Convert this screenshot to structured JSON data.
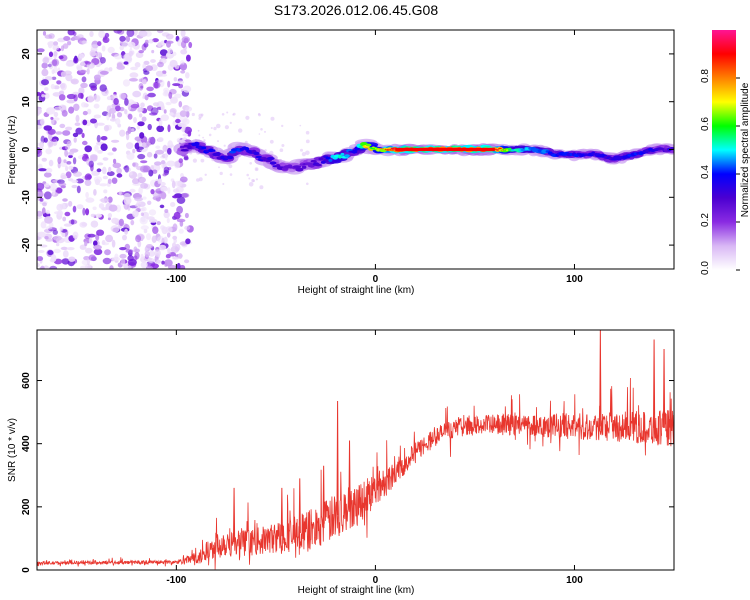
{
  "title": "S173.2026.012.06.45.G08",
  "chart_data": [
    {
      "type": "heatmap",
      "name": "spectrogram",
      "xlabel": "Height of straight line (km)",
      "ylabel": "Frequency (Hz)",
      "xlim": [
        -170,
        150
      ],
      "ylim": [
        -25,
        25
      ],
      "xticks": [
        -100,
        0,
        100
      ],
      "xtick_labels": [
        "-100",
        "0",
        "100"
      ],
      "yticks": [
        -20,
        -10,
        0,
        10,
        20
      ],
      "ytick_labels": [
        "-20",
        "-10",
        "0",
        "10",
        "20"
      ],
      "noise_region_x": [
        -170,
        -93
      ],
      "signal_track": {
        "x": [
          -97,
          -90,
          -85,
          -80,
          -75,
          -70,
          -65,
          -60,
          -55,
          -50,
          -45,
          -40,
          -35,
          -30,
          -25,
          -20,
          -15,
          -10,
          -5,
          0,
          10,
          30,
          60,
          70,
          80,
          90,
          100,
          110,
          120,
          130,
          140,
          150
        ],
        "freq": [
          0,
          1,
          0,
          -1,
          -2,
          0,
          0,
          -1,
          -2,
          -3,
          -4,
          -4,
          -3,
          -3,
          -2,
          -2,
          -1,
          0,
          1,
          0,
          0,
          0,
          0,
          0,
          0,
          -1,
          -1,
          -1,
          -2,
          -1,
          0,
          0
        ],
        "amp": [
          0.3,
          0.45,
          0.45,
          0.4,
          0.4,
          0.5,
          0.45,
          0.4,
          0.35,
          0.35,
          0.3,
          0.3,
          0.3,
          0.35,
          0.4,
          0.6,
          0.55,
          0.4,
          0.8,
          0.7,
          0.95,
          0.95,
          0.95,
          0.6,
          0.55,
          0.45,
          0.45,
          0.4,
          0.4,
          0.45,
          0.4,
          0.35
        ]
      },
      "colorbar": {
        "label": "Normalized spectral amplitude",
        "range": [
          0,
          1
        ],
        "ticks": [
          "0.0",
          "0.2",
          "0.4",
          "0.6",
          "0.8"
        ],
        "tick_values": [
          0,
          0.2,
          0.4,
          0.6,
          0.8
        ],
        "colors": [
          "#ffffff",
          "#d9b8f5",
          "#8a2be2",
          "#4b00d1",
          "#0000ff",
          "#00ffff",
          "#00ff00",
          "#ffff00",
          "#ff8000",
          "#ff0000",
          "#ff1493"
        ]
      }
    },
    {
      "type": "line",
      "name": "snr",
      "xlabel": "Height of straight line (km)",
      "ylabel": "SNR (10 * v/v)",
      "xlim": [
        -170,
        150
      ],
      "ylim": [
        0,
        760
      ],
      "xticks": [
        -100,
        0,
        100
      ],
      "xtick_labels": [
        "-100",
        "0",
        "100"
      ],
      "yticks": [
        0,
        200,
        400,
        600
      ],
      "ytick_labels": [
        "0",
        "200",
        "400",
        "600"
      ],
      "color": "#e8362e",
      "envelope": {
        "x": [
          -170,
          -100,
          -88,
          -82,
          -75,
          -65,
          -55,
          -45,
          -35,
          -25,
          -15,
          -5,
          5,
          15,
          25,
          35,
          45,
          60,
          80,
          100,
          120,
          140,
          150
        ],
        "base": [
          22,
          25,
          40,
          70,
          90,
          85,
          95,
          110,
          120,
          150,
          190,
          230,
          280,
          340,
          400,
          440,
          455,
          460,
          460,
          455,
          455,
          450,
          450
        ],
        "spread": [
          8,
          10,
          40,
          70,
          80,
          70,
          75,
          90,
          110,
          120,
          120,
          110,
          80,
          60,
          50,
          50,
          50,
          55,
          60,
          70,
          80,
          90,
          100
        ]
      },
      "spikes": [
        {
          "x": -71,
          "y": 260
        },
        {
          "x": -47,
          "y": 260
        },
        {
          "x": -38,
          "y": 290
        },
        {
          "x": -26,
          "y": 330
        },
        {
          "x": -19,
          "y": 535
        },
        {
          "x": -13,
          "y": 410
        },
        {
          "x": 113,
          "y": 760
        },
        {
          "x": 140,
          "y": 730
        },
        {
          "x": 145,
          "y": 700
        }
      ]
    }
  ]
}
